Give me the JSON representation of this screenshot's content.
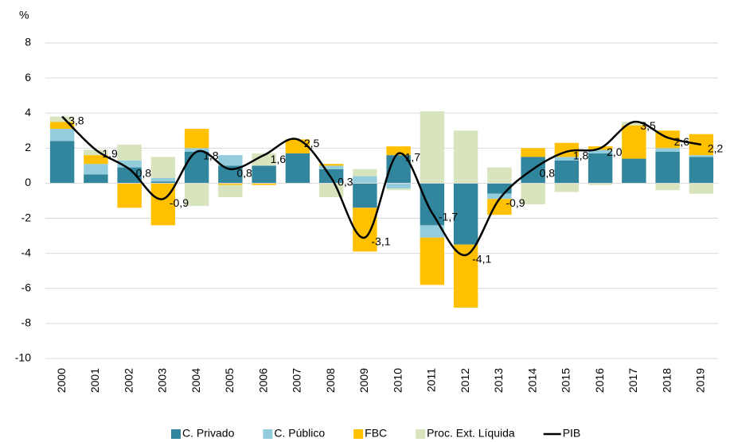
{
  "chart_data": {
    "type": "bar",
    "unit": "%",
    "categories": [
      "2000",
      "2001",
      "2002",
      "2003",
      "2004",
      "2005",
      "2006",
      "2007",
      "2008",
      "2009",
      "2010",
      "2011",
      "2012",
      "2013",
      "2014",
      "2015",
      "2016",
      "2017",
      "2018",
      "2019"
    ],
    "series": [
      {
        "name": "C. Privado",
        "color": "#31859c",
        "values": [
          2.4,
          0.5,
          0.9,
          0.1,
          1.8,
          1.0,
          1.0,
          1.7,
          0.8,
          -1.4,
          1.6,
          -2.4,
          -3.5,
          -0.6,
          1.5,
          1.3,
          1.7,
          1.4,
          1.8,
          1.5
        ]
      },
      {
        "name": "C. Público",
        "color": "#93cddd",
        "values": [
          0.7,
          0.6,
          0.4,
          0.2,
          0.2,
          0.6,
          0.0,
          0.0,
          0.2,
          0.4,
          -0.3,
          -0.7,
          0.0,
          -0.3,
          0.0,
          0.2,
          0.2,
          0.0,
          0.2,
          0.1
        ]
      },
      {
        "name": "FBC",
        "color": "#ffc000",
        "values": [
          0.4,
          0.5,
          -1.4,
          -2.4,
          1.1,
          -0.1,
          -0.1,
          0.8,
          0.1,
          -2.5,
          0.5,
          -2.7,
          -3.6,
          -0.9,
          0.5,
          0.8,
          0.2,
          1.9,
          1.0,
          1.2
        ]
      },
      {
        "name": "Proc. Ext. Líquida",
        "color": "#d7e4bd",
        "values": [
          0.3,
          0.3,
          0.9,
          1.2,
          -1.3,
          -0.7,
          0.7,
          0.0,
          -0.8,
          0.4,
          -0.1,
          4.1,
          3.0,
          0.9,
          -1.2,
          -0.5,
          -0.1,
          0.2,
          -0.4,
          -0.6
        ]
      },
      {
        "name": "PIB",
        "type": "line",
        "color": "#000000",
        "values": [
          3.8,
          1.9,
          0.8,
          -0.9,
          1.8,
          0.8,
          1.6,
          2.5,
          0.3,
          -3.1,
          1.7,
          -1.7,
          -4.1,
          -0.9,
          0.8,
          1.8,
          2.0,
          3.5,
          2.6,
          2.2
        ],
        "value_labels": [
          "3,8",
          "1,9",
          "0,8",
          "-0,9",
          "1,8",
          "0,8",
          "1,6",
          "2,5",
          "0,3",
          "-3,1",
          "1,7",
          "-1,7",
          "-4,1",
          "-0,9",
          "0,8",
          "1,8",
          "2,0",
          "3,5",
          "2,6",
          "2,2"
        ]
      }
    ],
    "ylim": [
      -10,
      8
    ],
    "yticks": [
      -10,
      -8,
      -6,
      -4,
      -2,
      0,
      2,
      4,
      6,
      8
    ],
    "grid": true,
    "legend": "bottom"
  }
}
